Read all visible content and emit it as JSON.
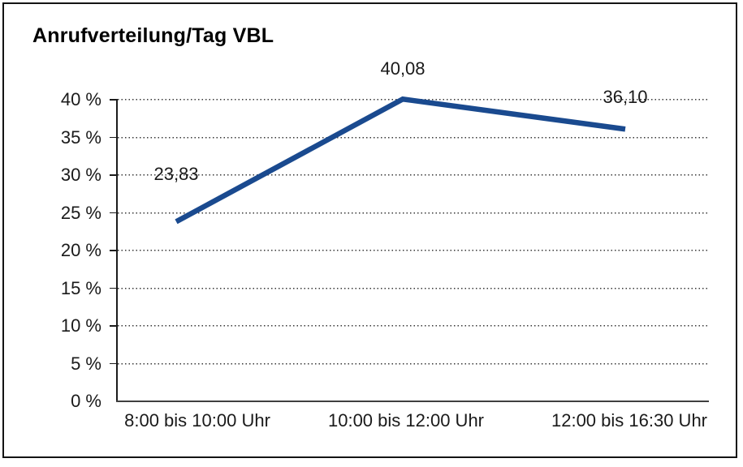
{
  "window": {
    "background": "#ffffff",
    "border_color": "#141414"
  },
  "chart_data": {
    "type": "line",
    "title": "Anrufverteilung/Tag VBL",
    "categories": [
      "8:00 bis 10:00 Uhr",
      "10:00 bis 12:00 Uhr",
      "12:00 bis 16:30 Uhr"
    ],
    "series": [
      {
        "color": "#1a4a8f",
        "values": [
          23.83,
          40.08,
          36.1
        ],
        "point_labels": [
          "23,83",
          "40,08",
          "36,10"
        ]
      }
    ],
    "xlabel": "",
    "ylabel": "",
    "ylim": [
      0,
      40
    ],
    "y_ticks": [
      0,
      5,
      10,
      15,
      20,
      25,
      30,
      35,
      40
    ],
    "y_tick_labels": [
      "0 %",
      "5 %",
      "10 %",
      "15 %",
      "20 %",
      "25 %",
      "30 %",
      "35 %",
      "40 %"
    ],
    "grid": "horizontal-dotted",
    "legend_position": "none",
    "value_format": "decimal-comma"
  }
}
